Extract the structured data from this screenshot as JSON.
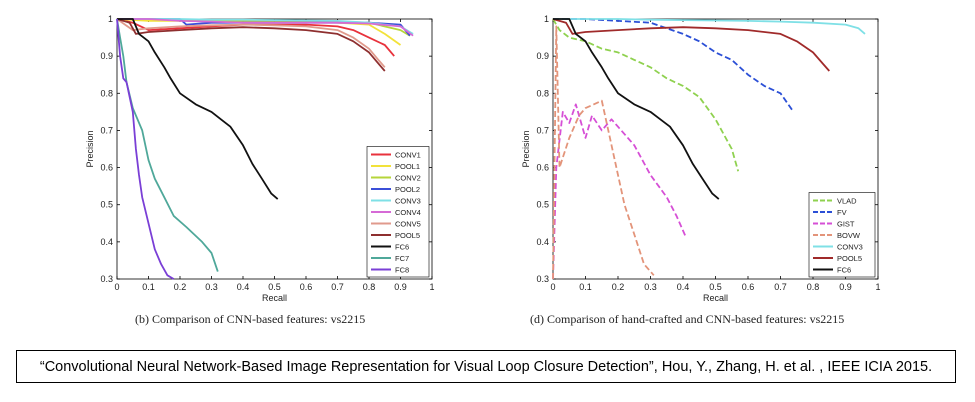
{
  "chart_data": [
    {
      "type": "line",
      "caption": "(b) Comparison of CNN-based features: vs2215",
      "xlabel": "Recall",
      "ylabel": "Precision",
      "xlim": [
        0,
        1
      ],
      "ylim": [
        0.3,
        1
      ],
      "xticks": [
        "0",
        "0.1",
        "0.2",
        "0.3",
        "0.4",
        "0.5",
        "0.6",
        "0.7",
        "0.8",
        "0.9",
        "1"
      ],
      "yticks": [
        "0.3",
        "0.4",
        "0.5",
        "0.6",
        "0.7",
        "0.8",
        "0.9",
        "1"
      ],
      "legend_position": "bottom-right",
      "series": [
        {
          "name": "CONV1",
          "color": "#e8323c",
          "dash": "",
          "x": [
            0,
            0.05,
            0.1,
            0.2,
            0.3,
            0.4,
            0.5,
            0.6,
            0.7,
            0.75,
            0.8,
            0.85,
            0.88
          ],
          "y": [
            1,
            0.99,
            0.97,
            0.975,
            0.98,
            0.985,
            0.985,
            0.985,
            0.98,
            0.97,
            0.95,
            0.93,
            0.9
          ]
        },
        {
          "name": "POOL1",
          "color": "#f2e23a",
          "dash": "",
          "x": [
            0,
            0.1,
            0.2,
            0.3,
            0.4,
            0.5,
            0.6,
            0.7,
            0.8,
            0.85,
            0.9
          ],
          "y": [
            1,
            0.995,
            0.995,
            0.995,
            0.995,
            0.995,
            0.993,
            0.99,
            0.985,
            0.96,
            0.93
          ]
        },
        {
          "name": "CONV2",
          "color": "#b6d53a",
          "dash": "",
          "x": [
            0,
            0.1,
            0.2,
            0.3,
            0.4,
            0.5,
            0.6,
            0.7,
            0.8,
            0.9,
            0.93
          ],
          "y": [
            1,
            1,
            0.997,
            0.997,
            0.995,
            0.995,
            0.995,
            0.993,
            0.99,
            0.97,
            0.955
          ]
        },
        {
          "name": "POOL2",
          "color": "#3b4fd8",
          "dash": "",
          "x": [
            0,
            0.2,
            0.22,
            0.3,
            0.4,
            0.5,
            0.6,
            0.7,
            0.8,
            0.9,
            0.93
          ],
          "y": [
            1,
            1,
            0.985,
            0.99,
            0.99,
            0.99,
            0.99,
            0.99,
            0.99,
            0.985,
            0.955
          ]
        },
        {
          "name": "CONV3",
          "color": "#7fe0e6",
          "dash": "",
          "x": [
            0,
            0.1,
            0.2,
            0.3,
            0.4,
            0.5,
            0.6,
            0.7,
            0.8,
            0.9,
            0.94
          ],
          "y": [
            1,
            1,
            1,
            0.998,
            0.998,
            0.997,
            0.996,
            0.995,
            0.99,
            0.98,
            0.96
          ]
        },
        {
          "name": "CONV4",
          "color": "#d66ad6",
          "dash": "",
          "x": [
            0,
            0.1,
            0.2,
            0.3,
            0.4,
            0.5,
            0.6,
            0.7,
            0.8,
            0.9,
            0.94
          ],
          "y": [
            1,
            1,
            0.995,
            0.993,
            0.99,
            0.99,
            0.99,
            0.99,
            0.988,
            0.98,
            0.955
          ]
        },
        {
          "name": "CONV5",
          "color": "#e09a8c",
          "dash": "",
          "x": [
            0,
            0.05,
            0.1,
            0.2,
            0.3,
            0.4,
            0.5,
            0.6,
            0.7,
            0.75,
            0.8,
            0.83,
            0.85
          ],
          "y": [
            1,
            0.97,
            0.975,
            0.98,
            0.983,
            0.985,
            0.983,
            0.98,
            0.97,
            0.95,
            0.92,
            0.89,
            0.87
          ]
        },
        {
          "name": "POOL5",
          "color": "#8e2f2f",
          "dash": "",
          "x": [
            0,
            0.04,
            0.06,
            0.1,
            0.2,
            0.3,
            0.4,
            0.5,
            0.6,
            0.7,
            0.75,
            0.8,
            0.83,
            0.85
          ],
          "y": [
            1,
            0.99,
            0.96,
            0.965,
            0.97,
            0.975,
            0.978,
            0.975,
            0.97,
            0.96,
            0.94,
            0.91,
            0.88,
            0.86
          ]
        },
        {
          "name": "FC6",
          "color": "#111111",
          "dash": "",
          "x": [
            0,
            0.05,
            0.07,
            0.1,
            0.12,
            0.15,
            0.17,
            0.2,
            0.25,
            0.3,
            0.33,
            0.36,
            0.4,
            0.43,
            0.46,
            0.49,
            0.51
          ],
          "y": [
            1,
            1,
            0.96,
            0.94,
            0.91,
            0.87,
            0.84,
            0.8,
            0.77,
            0.75,
            0.73,
            0.71,
            0.66,
            0.61,
            0.57,
            0.53,
            0.515
          ]
        },
        {
          "name": "FC7",
          "color": "#4fa89a",
          "dash": "",
          "x": [
            0,
            0.01,
            0.02,
            0.03,
            0.05,
            0.08,
            0.1,
            0.12,
            0.15,
            0.18,
            0.22,
            0.27,
            0.3,
            0.32
          ],
          "y": [
            1,
            0.95,
            0.9,
            0.83,
            0.76,
            0.7,
            0.62,
            0.57,
            0.52,
            0.47,
            0.44,
            0.4,
            0.37,
            0.32
          ]
        },
        {
          "name": "FC8",
          "color": "#7a3fd6",
          "dash": "",
          "x": [
            0,
            0.01,
            0.02,
            0.03,
            0.05,
            0.06,
            0.07,
            0.08,
            0.1,
            0.12,
            0.14,
            0.16,
            0.18
          ],
          "y": [
            1,
            0.9,
            0.84,
            0.83,
            0.75,
            0.65,
            0.58,
            0.52,
            0.45,
            0.38,
            0.34,
            0.31,
            0.3
          ]
        }
      ]
    },
    {
      "type": "line",
      "caption": "(d) Comparison of hand-crafted and CNN-based features: vs2215",
      "xlabel": "Recall",
      "ylabel": "Precision",
      "xlim": [
        0,
        1
      ],
      "ylim": [
        0.3,
        1
      ],
      "xticks": [
        "0",
        "0.1",
        "0.2",
        "0.3",
        "0.4",
        "0.5",
        "0.6",
        "0.7",
        "0.8",
        "0.9",
        "1"
      ],
      "yticks": [
        "0.3",
        "0.4",
        "0.5",
        "0.6",
        "0.7",
        "0.8",
        "0.9",
        "1"
      ],
      "legend_position": "bottom-right",
      "series": [
        {
          "name": "VLAD",
          "color": "#8fd14f",
          "dash": "6,3",
          "x": [
            0,
            0.02,
            0.05,
            0.1,
            0.15,
            0.2,
            0.25,
            0.3,
            0.35,
            0.4,
            0.45,
            0.5,
            0.55,
            0.57
          ],
          "y": [
            1,
            0.97,
            0.95,
            0.94,
            0.92,
            0.91,
            0.89,
            0.87,
            0.84,
            0.82,
            0.79,
            0.73,
            0.65,
            0.59
          ]
        },
        {
          "name": "FV",
          "color": "#2b4fd6",
          "dash": "6,3",
          "x": [
            0,
            0.1,
            0.2,
            0.3,
            0.35,
            0.4,
            0.45,
            0.5,
            0.55,
            0.6,
            0.65,
            0.7,
            0.74
          ],
          "y": [
            1,
            1,
            0.995,
            0.99,
            0.975,
            0.96,
            0.94,
            0.91,
            0.89,
            0.85,
            0.82,
            0.8,
            0.75
          ]
        },
        {
          "name": "GIST",
          "color": "#d64fd6",
          "dash": "6,3",
          "x": [
            0,
            0.01,
            0.03,
            0.05,
            0.07,
            0.1,
            0.12,
            0.15,
            0.18,
            0.2,
            0.25,
            0.3,
            0.35,
            0.38,
            0.41
          ],
          "y": [
            0.3,
            0.6,
            0.75,
            0.72,
            0.77,
            0.68,
            0.74,
            0.7,
            0.73,
            0.71,
            0.66,
            0.58,
            0.52,
            0.47,
            0.41
          ]
        },
        {
          "name": "BOVW",
          "color": "#e3947a",
          "dash": "6,3",
          "x": [
            0,
            0.01,
            0.02,
            0.05,
            0.08,
            0.1,
            0.15,
            0.17,
            0.2,
            0.22,
            0.25,
            0.28,
            0.31
          ],
          "y": [
            0.3,
            0.98,
            0.6,
            0.68,
            0.74,
            0.76,
            0.78,
            0.7,
            0.58,
            0.5,
            0.42,
            0.34,
            0.31
          ]
        },
        {
          "name": "CONV3",
          "color": "#7fe0e6",
          "dash": "",
          "x": [
            0,
            0.1,
            0.2,
            0.3,
            0.4,
            0.5,
            0.6,
            0.7,
            0.8,
            0.9,
            0.94,
            0.96
          ],
          "y": [
            1,
            1,
            1,
            0.998,
            0.997,
            0.996,
            0.995,
            0.993,
            0.99,
            0.985,
            0.975,
            0.96
          ]
        },
        {
          "name": "POOL5",
          "color": "#a02a2a",
          "dash": "",
          "x": [
            0,
            0.04,
            0.06,
            0.1,
            0.2,
            0.3,
            0.4,
            0.5,
            0.6,
            0.7,
            0.75,
            0.8,
            0.83,
            0.85
          ],
          "y": [
            1,
            0.99,
            0.96,
            0.965,
            0.97,
            0.975,
            0.978,
            0.975,
            0.97,
            0.96,
            0.94,
            0.91,
            0.88,
            0.86
          ]
        },
        {
          "name": "FC6",
          "color": "#111111",
          "dash": "",
          "x": [
            0,
            0.05,
            0.07,
            0.1,
            0.12,
            0.15,
            0.17,
            0.2,
            0.25,
            0.3,
            0.33,
            0.36,
            0.4,
            0.43,
            0.46,
            0.49,
            0.51
          ],
          "y": [
            1,
            1,
            0.96,
            0.94,
            0.91,
            0.87,
            0.84,
            0.8,
            0.77,
            0.75,
            0.73,
            0.71,
            0.66,
            0.61,
            0.57,
            0.53,
            0.515
          ]
        }
      ]
    }
  ],
  "citation": "“Convolutional Neural Network-Based Image Representation for Visual Loop Closure Detection”, Hou, Y., Zhang, H. et al. , IEEE ICIA 2015."
}
